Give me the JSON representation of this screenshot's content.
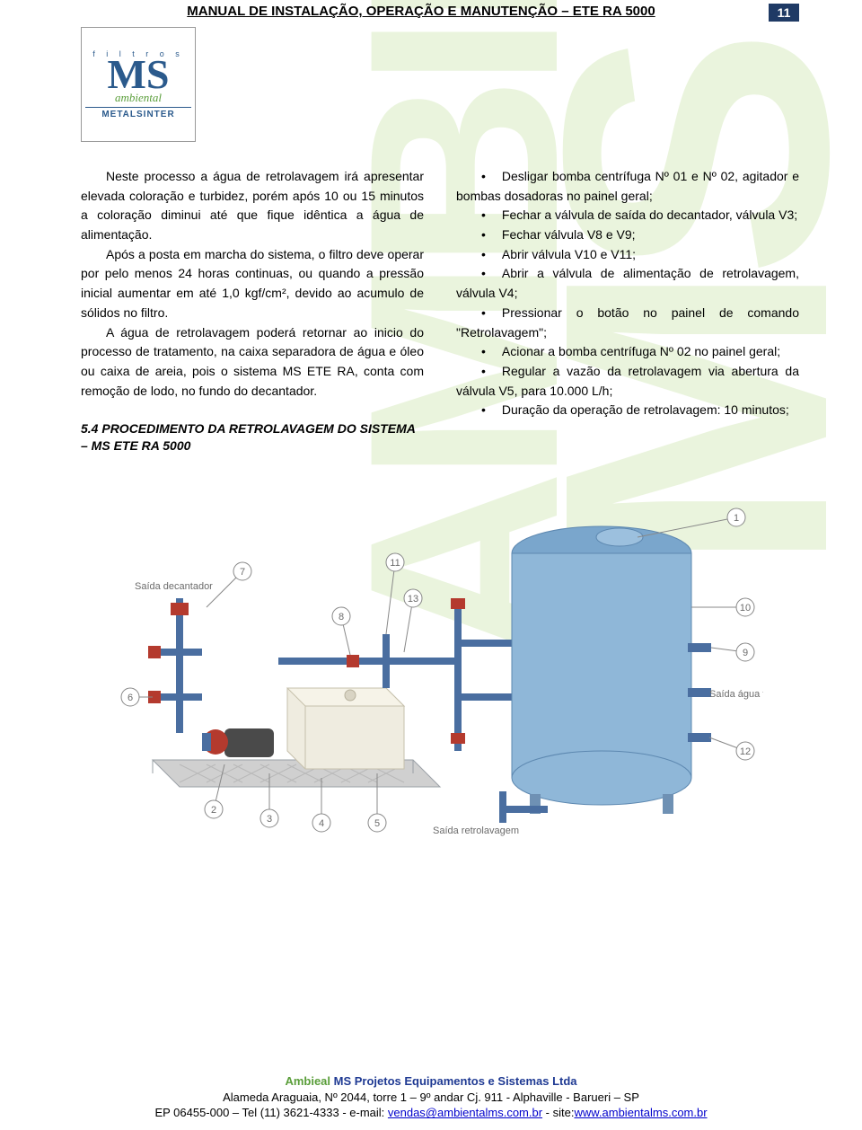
{
  "header": {
    "title": "MANUAL DE INSTALAÇÃO, OPERAÇÃO E MANUTENÇÃO – ETE RA 5000",
    "page_number": "11"
  },
  "logo": {
    "top": "f i l t r o s",
    "ms": "MS",
    "ambiental": "ambiental",
    "bottom": "METALSINTER"
  },
  "left_column": {
    "p1": "Neste processo a água de retrolavagem irá apresentar elevada coloração e turbidez, porém após 10 ou 15 minutos a coloração diminui até que fique idêntica a água de alimentação.",
    "p2": "Após a posta em marcha do sistema, o filtro deve operar por pelo menos 24 horas continuas, ou quando a pressão inicial aumentar em até 1,0 kgf/cm², devido ao acumulo de sólidos no filtro.",
    "p3": "A água de retrolavagem poderá retornar ao inicio do processo de tratamento, na caixa separadora de água e óleo ou caixa de areia, pois o sistema MS ETE RA, conta com remoção de lodo, no fundo do decantador.",
    "section_heading": "5.4 PROCEDIMENTO DA RETROLAVAGEM DO SISTEMA – MS ETE RA 5000"
  },
  "right_column": {
    "bullets": [
      "Desligar bomba centrífuga Nº 01 e Nº 02, agitador e bombas dosadoras no painel geral;",
      "Fechar a válvula de saída do decantador, válvula V3;",
      "Fechar válvula V8 e V9;",
      "Abrir válvula V10 e V11;",
      "Abrir a válvula de alimentação de retrolavagem, válvula V4;",
      "Pressionar o botão no painel de comando \"Retrolavagem\";",
      "Acionar a bomba centrífuga Nº 02 no painel geral;",
      "Regular a vazão da retrolavagem via abertura da válvula V5, para 10.000 L/h;",
      "Duração da operação de retrolavagem: 10 minutos;"
    ]
  },
  "diagram": {
    "callouts": [
      "1",
      "2",
      "3",
      "4",
      "5",
      "6",
      "7",
      "8",
      "9",
      "10",
      "11",
      "12",
      "13"
    ],
    "labels": {
      "saida_decantador": "Saída decantador",
      "saida_agua_tratada": "Saída água tratada",
      "saida_retrolavagem": "Saída retrolavagem"
    },
    "colors": {
      "tank": "#8fb7d8",
      "tank_top": "#7aa6cc",
      "pipe": "#4a6ea0",
      "valve_red": "#b43a2e",
      "box": "#d9d4c4",
      "skid": "#9aa0a6",
      "callout_stroke": "#888888",
      "label_text": "#6b6b6b"
    }
  },
  "footer": {
    "line1_amb": "Ambieal",
    "line1_rest": " MS Projetos Equipamentos e Sistemas Ltda",
    "line2": "Alameda Araguaia, Nº 2044, torre 1 – 9º andar Cj. 911 - Alphaville - Barueri – SP",
    "line3_pre": "EP 06455-000 – Tel (11) 3621-4333 - e-mail: ",
    "line3_link1": "vendas@ambientalms.com.br",
    "line3_mid": " - site:",
    "line3_link2": "www.ambientalms.com.br"
  },
  "watermark": {
    "fill": "#eaf4dd",
    "letters": "AMBIENTAL MS"
  }
}
